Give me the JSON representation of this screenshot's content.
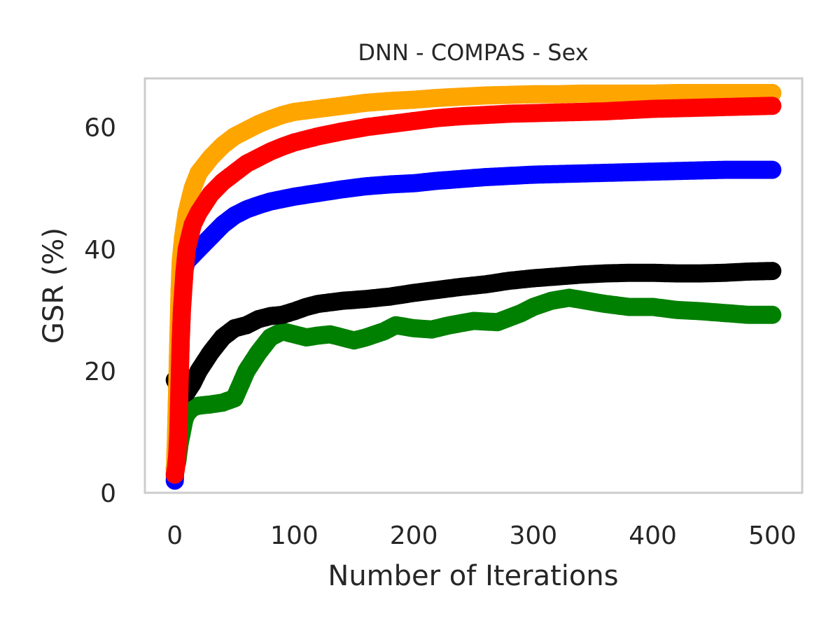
{
  "chart_data": {
    "type": "scatter",
    "title": "DNN - COMPAS - Sex",
    "xlabel": "Number of Iterations",
    "ylabel": "GSR (%)",
    "xlim": [
      -25,
      525
    ],
    "ylim": [
      0,
      68
    ],
    "xticks": [
      0,
      100,
      200,
      300,
      400,
      500
    ],
    "yticks": [
      0,
      20,
      40,
      60
    ],
    "grid": false,
    "legend": "none",
    "series": [
      {
        "color": "#008000",
        "points": [
          [
            0,
            4
          ],
          [
            2,
            5
          ],
          [
            4,
            8
          ],
          [
            6,
            10
          ],
          [
            8,
            12
          ],
          [
            10,
            13
          ],
          [
            15,
            14
          ],
          [
            20,
            14.3
          ],
          [
            30,
            14.5
          ],
          [
            40,
            14.8
          ],
          [
            50,
            15.5
          ],
          [
            60,
            20
          ],
          [
            70,
            23
          ],
          [
            80,
            25.5
          ],
          [
            90,
            26.5
          ],
          [
            100,
            26
          ],
          [
            110,
            25.5
          ],
          [
            120,
            25.8
          ],
          [
            130,
            26
          ],
          [
            140,
            25.5
          ],
          [
            150,
            25
          ],
          [
            160,
            25.5
          ],
          [
            175,
            26.5
          ],
          [
            185,
            27.5
          ],
          [
            200,
            27
          ],
          [
            215,
            26.8
          ],
          [
            230,
            27.5
          ],
          [
            250,
            28.2
          ],
          [
            270,
            28
          ],
          [
            290,
            29.5
          ],
          [
            300,
            30.5
          ],
          [
            315,
            31.5
          ],
          [
            330,
            32
          ],
          [
            345,
            31.5
          ],
          [
            360,
            31
          ],
          [
            380,
            30.5
          ],
          [
            400,
            30.5
          ],
          [
            420,
            30
          ],
          [
            440,
            29.8
          ],
          [
            460,
            29.5
          ],
          [
            480,
            29.2
          ],
          [
            500,
            29.2
          ]
        ]
      },
      {
        "color": "#000000",
        "points": [
          [
            0,
            18.5
          ],
          [
            3,
            17.5
          ],
          [
            6,
            16
          ],
          [
            10,
            16.5
          ],
          [
            15,
            18
          ],
          [
            20,
            20
          ],
          [
            30,
            23
          ],
          [
            40,
            25.5
          ],
          [
            50,
            27
          ],
          [
            60,
            27.5
          ],
          [
            70,
            28.5
          ],
          [
            80,
            29
          ],
          [
            90,
            29.2
          ],
          [
            100,
            29.8
          ],
          [
            110,
            30.5
          ],
          [
            120,
            31
          ],
          [
            140,
            31.5
          ],
          [
            160,
            31.8
          ],
          [
            180,
            32.2
          ],
          [
            200,
            32.8
          ],
          [
            220,
            33.3
          ],
          [
            240,
            33.8
          ],
          [
            260,
            34.2
          ],
          [
            280,
            34.8
          ],
          [
            300,
            35.2
          ],
          [
            320,
            35.5
          ],
          [
            340,
            35.8
          ],
          [
            360,
            36
          ],
          [
            380,
            36.1
          ],
          [
            400,
            36.1
          ],
          [
            420,
            36
          ],
          [
            440,
            36
          ],
          [
            460,
            36.1
          ],
          [
            480,
            36.3
          ],
          [
            500,
            36.4
          ]
        ]
      },
      {
        "color": "#0000ff",
        "points": [
          [
            0,
            2
          ],
          [
            1,
            8
          ],
          [
            2,
            16
          ],
          [
            3,
            24
          ],
          [
            4,
            30
          ],
          [
            5,
            34
          ],
          [
            7,
            36
          ],
          [
            10,
            38
          ],
          [
            15,
            39
          ],
          [
            20,
            40
          ],
          [
            30,
            42
          ],
          [
            40,
            44
          ],
          [
            50,
            45.5
          ],
          [
            60,
            46.5
          ],
          [
            70,
            47.2
          ],
          [
            80,
            47.8
          ],
          [
            90,
            48.2
          ],
          [
            100,
            48.6
          ],
          [
            120,
            49.2
          ],
          [
            140,
            49.8
          ],
          [
            160,
            50.3
          ],
          [
            180,
            50.6
          ],
          [
            200,
            50.8
          ],
          [
            220,
            51.2
          ],
          [
            240,
            51.5
          ],
          [
            260,
            51.8
          ],
          [
            280,
            52
          ],
          [
            300,
            52.2
          ],
          [
            320,
            52.3
          ],
          [
            340,
            52.4
          ],
          [
            360,
            52.5
          ],
          [
            380,
            52.6
          ],
          [
            400,
            52.7
          ],
          [
            420,
            52.8
          ],
          [
            440,
            52.9
          ],
          [
            460,
            53
          ],
          [
            480,
            53
          ],
          [
            500,
            53
          ]
        ]
      },
      {
        "color": "#ffa500",
        "points": [
          [
            0,
            3
          ],
          [
            1,
            9
          ],
          [
            2,
            17
          ],
          [
            3,
            25
          ],
          [
            4,
            33
          ],
          [
            5,
            38
          ],
          [
            7,
            42
          ],
          [
            10,
            46
          ],
          [
            15,
            50
          ],
          [
            20,
            52.5
          ],
          [
            30,
            55
          ],
          [
            40,
            57
          ],
          [
            50,
            58.5
          ],
          [
            60,
            59.5
          ],
          [
            70,
            60.5
          ],
          [
            80,
            61.3
          ],
          [
            90,
            62
          ],
          [
            100,
            62.5
          ],
          [
            120,
            63
          ],
          [
            140,
            63.5
          ],
          [
            160,
            64
          ],
          [
            180,
            64.3
          ],
          [
            200,
            64.5
          ],
          [
            220,
            64.8
          ],
          [
            240,
            65
          ],
          [
            260,
            65.2
          ],
          [
            280,
            65.3
          ],
          [
            300,
            65.4
          ],
          [
            320,
            65.4
          ],
          [
            340,
            65.5
          ],
          [
            360,
            65.5
          ],
          [
            380,
            65.5
          ],
          [
            400,
            65.5
          ],
          [
            420,
            65.6
          ],
          [
            440,
            65.6
          ],
          [
            460,
            65.6
          ],
          [
            480,
            65.6
          ],
          [
            500,
            65.6
          ]
        ]
      },
      {
        "color": "#ff0000",
        "points": [
          [
            0,
            3
          ],
          [
            1,
            4
          ],
          [
            2,
            6
          ],
          [
            3,
            10
          ],
          [
            4,
            18
          ],
          [
            5,
            25
          ],
          [
            6,
            30
          ],
          [
            8,
            36
          ],
          [
            10,
            40
          ],
          [
            15,
            44
          ],
          [
            20,
            46
          ],
          [
            30,
            49
          ],
          [
            40,
            51
          ],
          [
            50,
            52.5
          ],
          [
            60,
            54
          ],
          [
            70,
            55
          ],
          [
            80,
            56
          ],
          [
            90,
            56.8
          ],
          [
            100,
            57.5
          ],
          [
            120,
            58.5
          ],
          [
            140,
            59.3
          ],
          [
            160,
            60
          ],
          [
            180,
            60.5
          ],
          [
            200,
            61
          ],
          [
            220,
            61.5
          ],
          [
            240,
            61.8
          ],
          [
            260,
            62
          ],
          [
            280,
            62.2
          ],
          [
            300,
            62.3
          ],
          [
            320,
            62.4
          ],
          [
            340,
            62.5
          ],
          [
            360,
            62.6
          ],
          [
            380,
            62.8
          ],
          [
            400,
            63
          ],
          [
            420,
            63.1
          ],
          [
            440,
            63.2
          ],
          [
            460,
            63.3
          ],
          [
            480,
            63.4
          ],
          [
            500,
            63.5
          ]
        ]
      }
    ]
  }
}
